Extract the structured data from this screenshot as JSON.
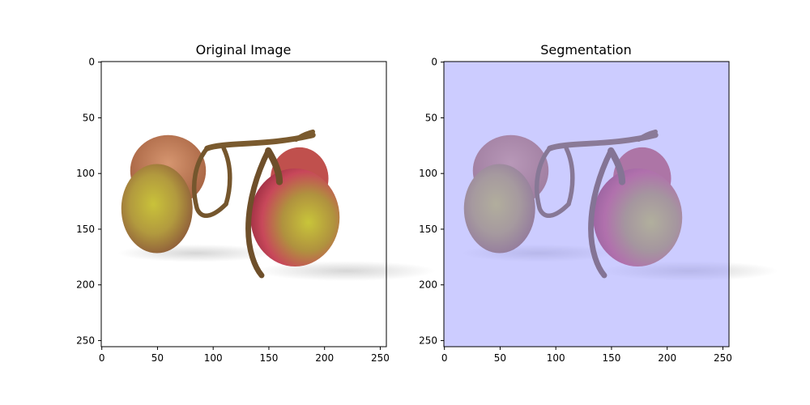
{
  "panels": [
    {
      "title": "Original Image",
      "background": "#ffffff",
      "xticks": [
        "0",
        "50",
        "100",
        "150",
        "200",
        "250"
      ],
      "yticks": [
        "0",
        "50",
        "100",
        "150",
        "200",
        "250"
      ]
    },
    {
      "title": "Segmentation",
      "background": "#cdcdfe",
      "xticks": [
        "0",
        "50",
        "100",
        "150",
        "200",
        "250"
      ],
      "yticks": [
        "0",
        "50",
        "100",
        "150",
        "200",
        "250"
      ]
    }
  ]
}
